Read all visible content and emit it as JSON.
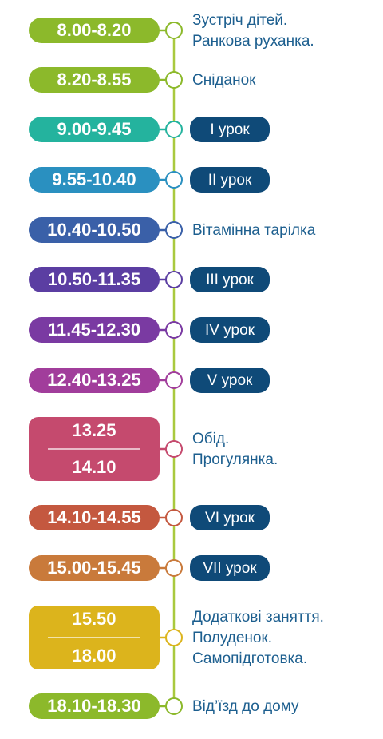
{
  "schedule": {
    "line_color": "#a9c93e",
    "lesson_color": "#0f4a78",
    "items": [
      {
        "time": "8.00-8.20",
        "color": "#8cb92b",
        "activity": [
          "Зустріч дітей.",
          "Ранкова руханка."
        ]
      },
      {
        "time": "8.20-8.55",
        "color": "#8cb92b",
        "activity": [
          "Сніданок"
        ]
      },
      {
        "time": "9.00-9.45",
        "color": "#24b39e",
        "kind": "lesson",
        "activity": [
          "І урок"
        ]
      },
      {
        "time": "9.55-10.40",
        "color": "#2a90c0",
        "kind": "lesson",
        "activity": [
          "ІІ урок"
        ]
      },
      {
        "time": "10.40-10.50",
        "color": "#3a60a8",
        "activity": [
          "Вітамінна тарілка"
        ]
      },
      {
        "time": "10.50-11.35",
        "color": "#5b3ea2",
        "kind": "lesson",
        "activity": [
          "ІІІ урок"
        ]
      },
      {
        "time": "11.45-12.30",
        "color": "#7a3aa2",
        "kind": "lesson",
        "activity": [
          "IV урок"
        ]
      },
      {
        "time": "12.40-13.25",
        "color": "#a13d9b",
        "kind": "lesson",
        "activity": [
          "V урок"
        ]
      },
      {
        "start": "13.25",
        "end": "14.10",
        "color": "#c54a6e",
        "activity": [
          "Обід.",
          "Прогулянка."
        ]
      },
      {
        "time": "14.10-14.55",
        "color": "#c4583f",
        "kind": "lesson",
        "activity": [
          "VI урок"
        ]
      },
      {
        "time": "15.00-15.45",
        "color": "#c97a3b",
        "kind": "lesson",
        "activity": [
          "VII урок"
        ]
      },
      {
        "start": "15.50",
        "end": "18.00",
        "color": "#dcb41c",
        "activity": [
          "Додаткові заняття.",
          "Полуденок.",
          "Самопідготовка."
        ]
      },
      {
        "time": "18.10-18.30",
        "color": "#8cb92b",
        "activity": [
          "Від’їзд до дому"
        ]
      }
    ]
  }
}
